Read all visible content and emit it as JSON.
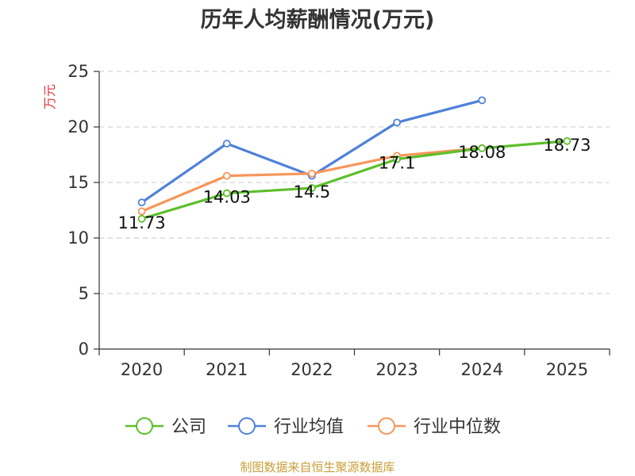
{
  "chart_data": {
    "type": "line",
    "title": "历年人均薪酬情况(万元)",
    "ylabel": "万元",
    "xlabel": "",
    "ylim": [
      0,
      25
    ],
    "yticks": [
      0,
      5,
      10,
      15,
      20,
      25
    ],
    "categories": [
      "2020",
      "2021",
      "2022",
      "2023",
      "2024",
      "2025"
    ],
    "grid": true,
    "legend_position": "bottom",
    "series": [
      {
        "name": "公司",
        "color": "#5cbf2a",
        "values": [
          11.73,
          14.03,
          14.5,
          17.1,
          18.08,
          18.73
        ],
        "labels": [
          "11.73",
          "14.03",
          "14.5",
          "17.1",
          "18.08",
          "18.73"
        ]
      },
      {
        "name": "行业均值",
        "color": "#4f81d9",
        "values": [
          13.2,
          18.5,
          15.6,
          20.4,
          22.4,
          null
        ]
      },
      {
        "name": "行业中位数",
        "color": "#f7965a",
        "values": [
          12.4,
          15.6,
          15.8,
          17.4,
          18.1,
          null
        ]
      }
    ]
  },
  "footer": {
    "source": "制图数据来自恒生聚源数据库"
  }
}
